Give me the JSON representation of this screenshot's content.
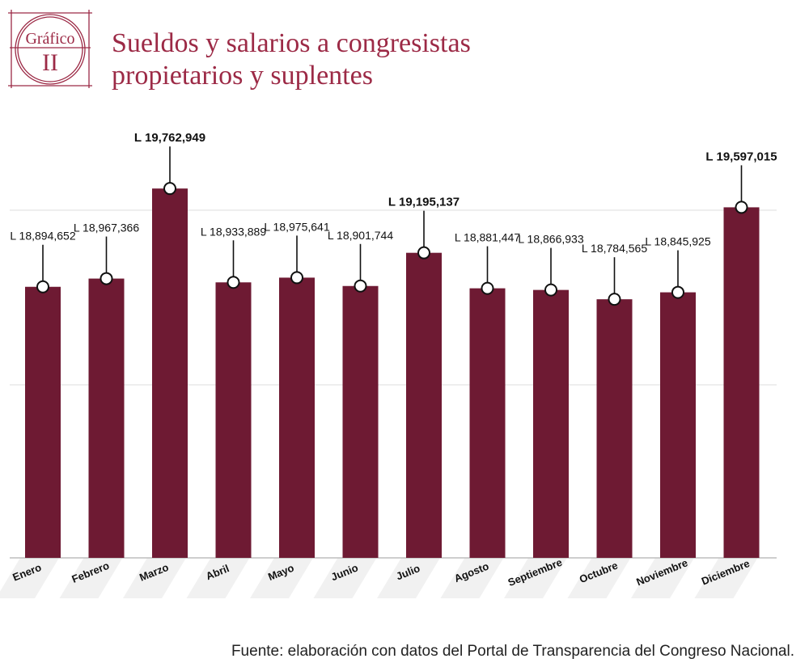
{
  "badge": {
    "word": "Gráfico",
    "numeral": "II"
  },
  "title_lines": [
    "Sueldos y salarios a congresistas",
    "propietarios y suplentes"
  ],
  "source": "Fuente: elaboración con datos del Portal de Transparencia del Congreso Nacional.",
  "colors": {
    "bar": "#6e1a33",
    "title": "#9c2a46",
    "grid": "#dddddd"
  },
  "chart_data": {
    "type": "bar",
    "title": "Sueldos y salarios a congresistas propietarios y suplentes",
    "categories": [
      "Enero",
      "Febrero",
      "Marzo",
      "Abril",
      "Mayo",
      "Junio",
      "Julio",
      "Agosto",
      "Septiembre",
      "Octubre",
      "Noviembre",
      "Diciembre"
    ],
    "values": [
      18894652,
      18967366,
      19762949,
      18933889,
      18975641,
      18901744,
      19195137,
      18881447,
      18866933,
      18784565,
      18845925,
      19597015
    ],
    "data_labels": [
      "L 18,894,652",
      "L 18,967,366",
      "L 19,762,949",
      "L 18,933,889",
      "L 18,975,641",
      "L 18,901,744",
      "L 19,195,137",
      "L 18,881,447",
      "L 18,866,933",
      "L 18,784,565",
      "L 18,845,925",
      "L 19,597,015"
    ],
    "highlighted": [
      2,
      6,
      11
    ],
    "xlabel": "",
    "ylabel": "",
    "ylim": [
      16500000,
      19900000
    ],
    "grid": true,
    "legend": "none"
  }
}
